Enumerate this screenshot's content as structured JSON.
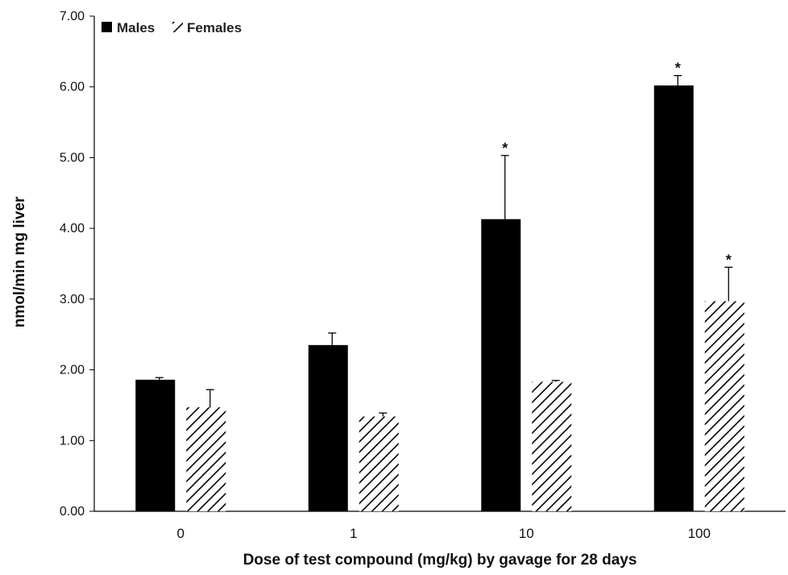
{
  "chart_data": {
    "type": "bar",
    "categories": [
      "0",
      "1",
      "10",
      "100"
    ],
    "series": [
      {
        "name": "Males",
        "fill": "solid",
        "color": "#000000",
        "values": [
          1.86,
          2.35,
          4.13,
          6.02
        ],
        "errors": [
          0.03,
          0.17,
          0.9,
          0.14
        ],
        "significant": [
          "",
          "",
          "*",
          "*"
        ]
      },
      {
        "name": "Females",
        "fill": "hatched",
        "color": "#000000",
        "values": [
          1.47,
          1.34,
          1.83,
          2.97
        ],
        "errors": [
          0.25,
          0.05,
          0.02,
          0.48
        ],
        "significant": [
          "",
          "",
          "",
          "*"
        ]
      }
    ],
    "xlabel": "Dose of test compound (mg/kg) by gavage for 28 days",
    "ylabel": "nmol/min mg liver",
    "ylim": [
      0,
      7
    ],
    "yticks": [
      "0.00",
      "1.00",
      "2.00",
      "3.00",
      "4.00",
      "5.00",
      "6.00",
      "7.00"
    ],
    "grid": false,
    "legend_position": "top-left"
  }
}
